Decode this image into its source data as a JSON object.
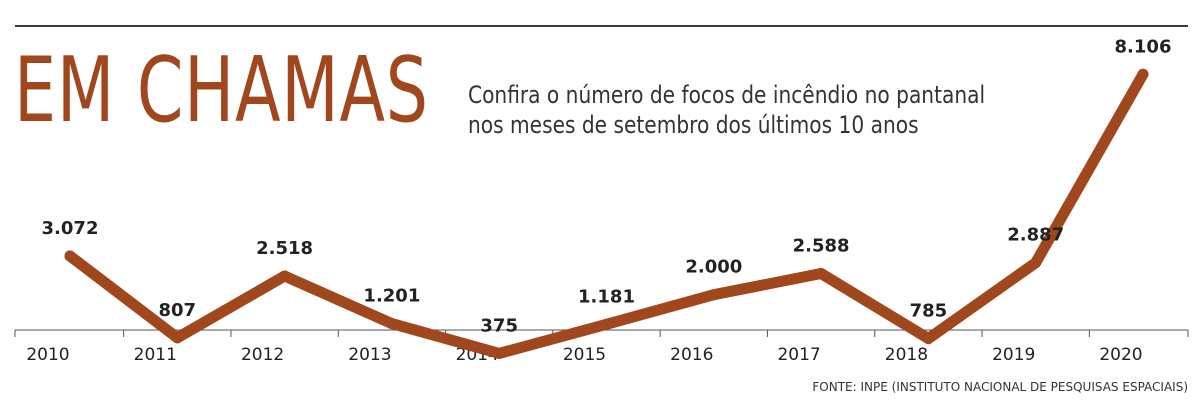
{
  "header": {
    "title": "EM CHAMAS",
    "subtitle_line1": "Confira o número de focos de incêndio no pantanal",
    "subtitle_line2": "nos meses de setembro dos últimos 10 anos"
  },
  "source": "FONTE: INPE (INSTITUTO NACIONAL DE PESQUISAS ESPACIAIS)",
  "colors": {
    "line": "#a0471d",
    "title": "#a0471d",
    "text": "#222222",
    "axis": "#555555"
  },
  "chart_data": {
    "type": "line",
    "title": "EM CHAMAS",
    "subtitle": "Confira o número de focos de incêndio no pantanal nos meses de setembro dos últimos 10 anos",
    "x": [
      "2010",
      "2011",
      "2012",
      "2013",
      "2014",
      "2015",
      "2016",
      "2017",
      "2018",
      "2019",
      "2020"
    ],
    "values": [
      3072,
      807,
      2518,
      1201,
      375,
      1181,
      2000,
      2588,
      785,
      2887,
      8106
    ],
    "labels": [
      "3.072",
      "807",
      "2.518",
      "1.201",
      "375",
      "1.181",
      "2.000",
      "2.588",
      "785",
      "2.887",
      "8.106"
    ],
    "xlabel": "",
    "ylabel": "",
    "ylim": [
      -1000,
      9500
    ],
    "grid": false,
    "legend": "none"
  }
}
